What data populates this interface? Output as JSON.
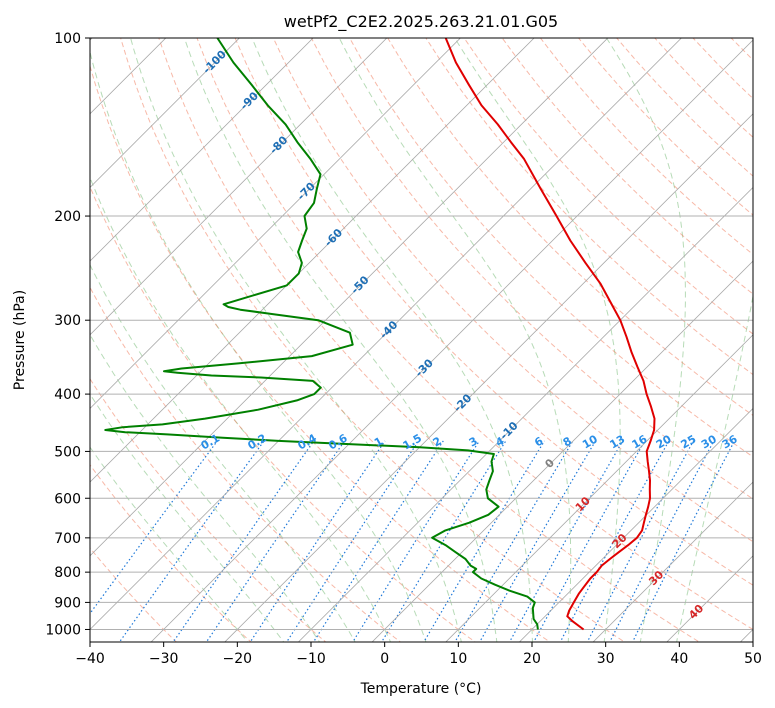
{
  "chart_data": {
    "type": "line",
    "title": "wetPf2_C2E2.2025.263.21.01.G05",
    "xlabel": "Temperature (°C)",
    "ylabel": "Pressure (hPa)",
    "xlim": [
      -40,
      50
    ],
    "ylim": [
      1050,
      100
    ],
    "y_scale": "log",
    "skew": "skew-T log-p diagram",
    "x_ticks": [
      "−40",
      "−30",
      "−20",
      "−10",
      "0",
      "10",
      "20",
      "30",
      "40",
      "50"
    ],
    "y_ticks": [
      "100",
      "200",
      "300",
      "400",
      "500",
      "600",
      "700",
      "800",
      "900",
      "1000"
    ],
    "colors": {
      "temperature": "#e00000",
      "dewpoint": "#008000",
      "isotherm": "#a0a0a0",
      "dry_adiabat": "#f08060",
      "moist_adiabat": "#60b060",
      "mixing_ratio": "#1e78d8",
      "label_dark_blue": "#1f6fb5",
      "label_light_blue": "#2a8fe8",
      "label_red": "#d62728"
    },
    "temperature": {
      "p": [
        1000,
        970,
        950,
        930,
        900,
        870,
        850,
        820,
        800,
        780,
        760,
        740,
        720,
        700,
        680,
        660,
        640,
        620,
        600,
        580,
        560,
        540,
        520,
        500,
        480,
        460,
        440,
        420,
        400,
        380,
        360,
        340,
        320,
        300,
        280,
        260,
        240,
        220,
        200,
        180,
        160,
        150,
        140,
        130,
        120,
        110,
        100
      ],
      "t": [
        27.0,
        24.5,
        23.0,
        22.5,
        22.0,
        21.5,
        21.3,
        21.0,
        21.0,
        20.8,
        21.0,
        21.3,
        21.6,
        21.8,
        21.5,
        20.7,
        19.9,
        19.1,
        18.2,
        17.0,
        15.8,
        14.4,
        12.9,
        11.4,
        10.5,
        9.5,
        8.0,
        5.9,
        3.6,
        1.4,
        -1.3,
        -4.1,
        -6.9,
        -10.0,
        -13.7,
        -17.7,
        -22.5,
        -27.6,
        -32.8,
        -38.6,
        -45.0,
        -49.0,
        -53.2,
        -58.0,
        -62.5,
        -67.3,
        -72.0
      ]
    },
    "dewpoint": {
      "p": [
        1000,
        980,
        960,
        940,
        920,
        900,
        880,
        860,
        840,
        820,
        800,
        790,
        780,
        760,
        740,
        720,
        700,
        680,
        660,
        640,
        620,
        600,
        580,
        560,
        540,
        520,
        505,
        498,
        492,
        486,
        480,
        474,
        468,
        464,
        460,
        455,
        450,
        440,
        425,
        410,
        400,
        390,
        380,
        375,
        372,
        368,
        366,
        362,
        355,
        345,
        330,
        315,
        300,
        293,
        288,
        285,
        282,
        275,
        262,
        250,
        240,
        230,
        220,
        210,
        200,
        190,
        180,
        170,
        160,
        150,
        140,
        130,
        120,
        110,
        100
      ],
      "td": [
        20.8,
        20.0,
        18.8,
        18.0,
        17.2,
        16.7,
        14.9,
        11.7,
        8.9,
        6.2,
        4.2,
        4.2,
        3.0,
        1.4,
        -0.9,
        -3.2,
        -6.0,
        -5.2,
        -3.0,
        -1.5,
        -1.2,
        -3.8,
        -5.2,
        -6.0,
        -6.8,
        -8.3,
        -9.0,
        -13.0,
        -20.0,
        -30.0,
        -40.0,
        -48.0,
        -56.0,
        -62.0,
        -65.0,
        -63.0,
        -58.0,
        -53.0,
        -47.0,
        -43.0,
        -41.5,
        -41.5,
        -43.5,
        -51.0,
        -58.0,
        -63.0,
        -65.0,
        -63.0,
        -56.0,
        -47.0,
        -43.0,
        -45.0,
        -51.0,
        -58.0,
        -63.0,
        -65.0,
        -66.0,
        -64.0,
        -60.0,
        -60.0,
        -61.0,
        -63.0,
        -64.0,
        -65.0,
        -67.0,
        -67.5,
        -69.0,
        -70.5,
        -74.0,
        -78.0,
        -82.0,
        -87.0,
        -92.0,
        -97.5,
        -103.0
      ]
    },
    "temperature_labels": [
      "-100",
      "-90",
      "-80",
      "-70",
      "-60",
      "-50",
      "-40",
      "-30",
      "-20",
      "-10",
      "0",
      "10",
      "20",
      "30",
      "40"
    ],
    "mixing_ratio_labels": [
      "0.1",
      "0.2",
      "0.4",
      "0.6",
      "1",
      "1.5",
      "2",
      "3",
      "4",
      "6",
      "8",
      "10",
      "13",
      "16",
      "20",
      "25",
      "30",
      "36"
    ]
  }
}
